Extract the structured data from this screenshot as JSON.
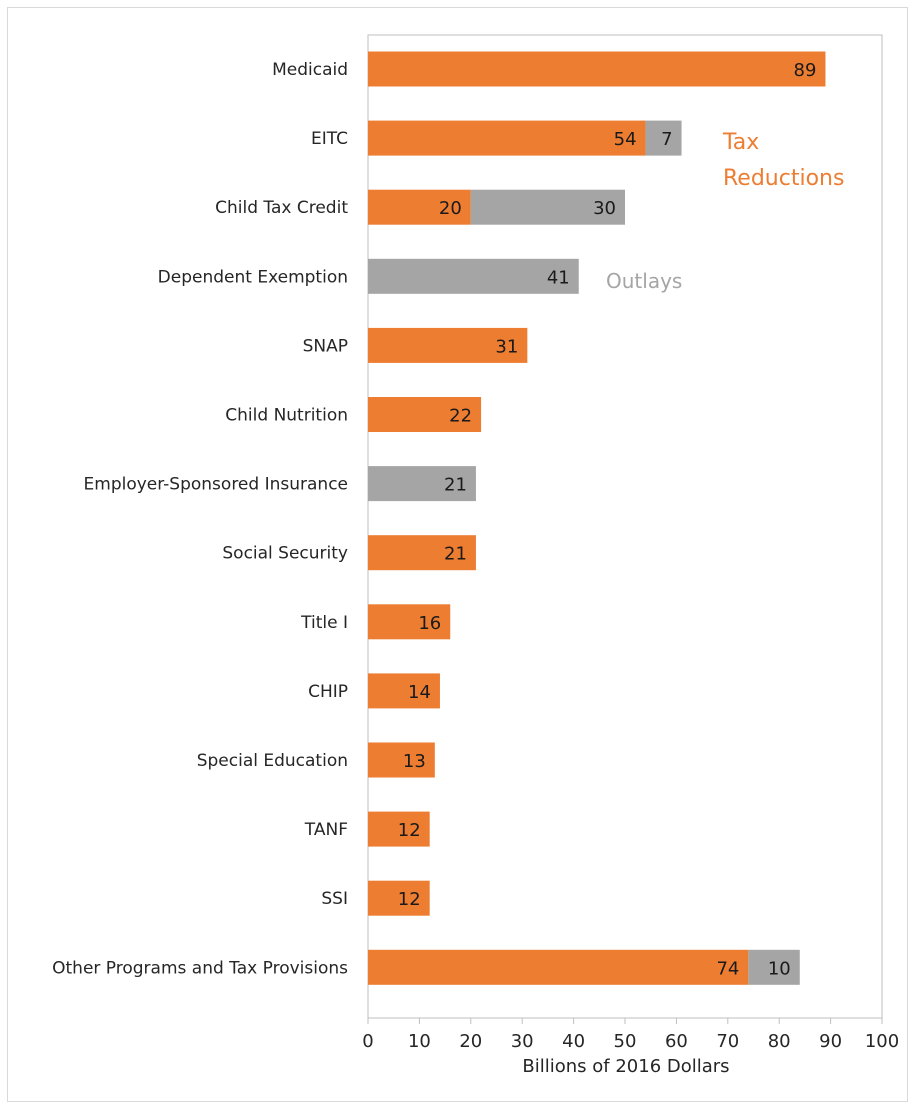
{
  "chart_data": {
    "type": "bar",
    "orientation": "horizontal",
    "stacked": true,
    "categories": [
      "Medicaid",
      "EITC",
      "Child Tax Credit",
      "Dependent Exemption",
      "SNAP",
      "Child Nutrition",
      "Employer-Sponsored Insurance",
      "Social Security",
      "Title I",
      "CHIP",
      "Special Education",
      "TANF",
      "SSI",
      "Other Programs and Tax Provisions"
    ],
    "series": [
      {
        "name": "Outlays",
        "color": "#ED7D31",
        "values": [
          89,
          54,
          20,
          0,
          31,
          22,
          0,
          21,
          16,
          14,
          13,
          12,
          12,
          74
        ]
      },
      {
        "name": "Tax Reductions",
        "color": "#A5A5A5",
        "values": [
          0,
          7,
          30,
          41,
          0,
          0,
          21,
          0,
          0,
          0,
          0,
          0,
          0,
          10
        ]
      }
    ],
    "xlabel": "Billions of 2016 Dollars",
    "xlim": [
      0,
      100
    ],
    "xticks": [
      "0",
      "10",
      "20",
      "30",
      "40",
      "50",
      "60",
      "70",
      "80",
      "90",
      "100"
    ],
    "grid": false,
    "annotations": [
      {
        "text": "Tax",
        "color": "#ED7D31"
      },
      {
        "text": "Reductions",
        "color": "#ED7D31"
      },
      {
        "text": "Outlays",
        "color": "#A5A5A5"
      }
    ]
  }
}
